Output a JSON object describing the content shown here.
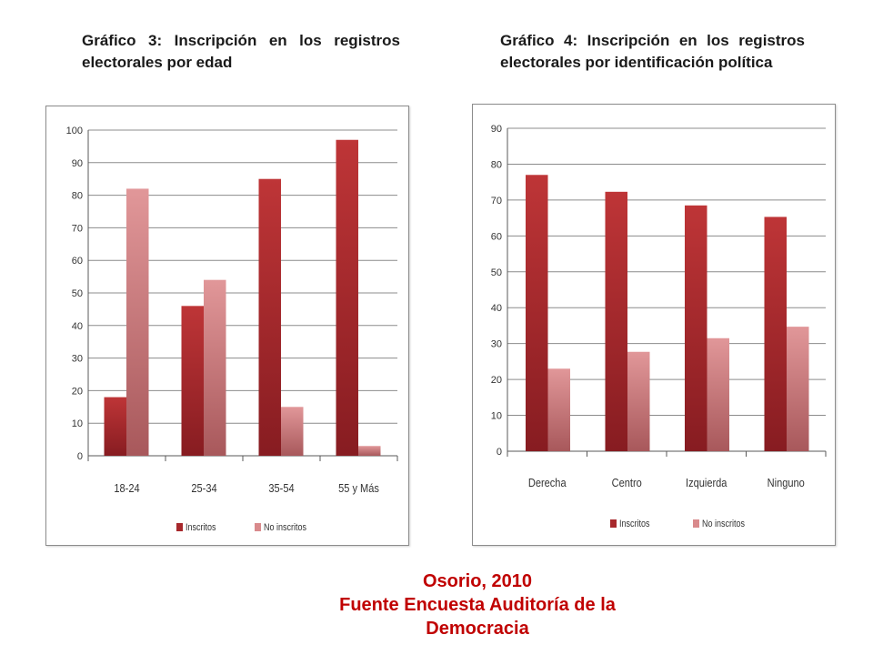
{
  "caption_left": "Gráfico 3: Inscripción en los registros electorales por edad",
  "caption_right": "Gráfico 4: Inscripción en los registros electorales por identificación política",
  "footer": {
    "line1": "Osorio, 2010",
    "line2": "Fuente Encuesta Auditoría de la",
    "line3": "Democracia"
  },
  "colors": {
    "inscritos": "#a7282c",
    "no_inscritos": "#d98a8c",
    "axis": "#595959",
    "grid": "#8c8c8c"
  },
  "chart_data": [
    {
      "type": "bar",
      "title": "",
      "categories": [
        "18-24",
        "25-34",
        "35-54",
        "55 y Más"
      ],
      "series": [
        {
          "name": "Inscritos",
          "values": [
            18,
            46,
            85,
            97
          ]
        },
        {
          "name": "No inscritos",
          "values": [
            82,
            54,
            15,
            3
          ]
        }
      ],
      "ylim": [
        0,
        100
      ],
      "yticks": [
        0,
        10,
        20,
        30,
        40,
        50,
        60,
        70,
        80,
        90,
        100
      ],
      "grid": true,
      "legend": "bottom"
    },
    {
      "type": "bar",
      "title": "",
      "categories": [
        "Derecha",
        "Centro",
        "Izquierda",
        "Ninguno"
      ],
      "series": [
        {
          "name": "Inscritos",
          "values": [
            77,
            72.3,
            68.5,
            65.3
          ]
        },
        {
          "name": "No inscritos",
          "values": [
            23,
            27.7,
            31.5,
            34.7
          ]
        }
      ],
      "ylim": [
        0,
        90
      ],
      "yticks": [
        0,
        10,
        20,
        30,
        40,
        50,
        60,
        70,
        80,
        90
      ],
      "grid": true,
      "legend": "bottom"
    }
  ]
}
